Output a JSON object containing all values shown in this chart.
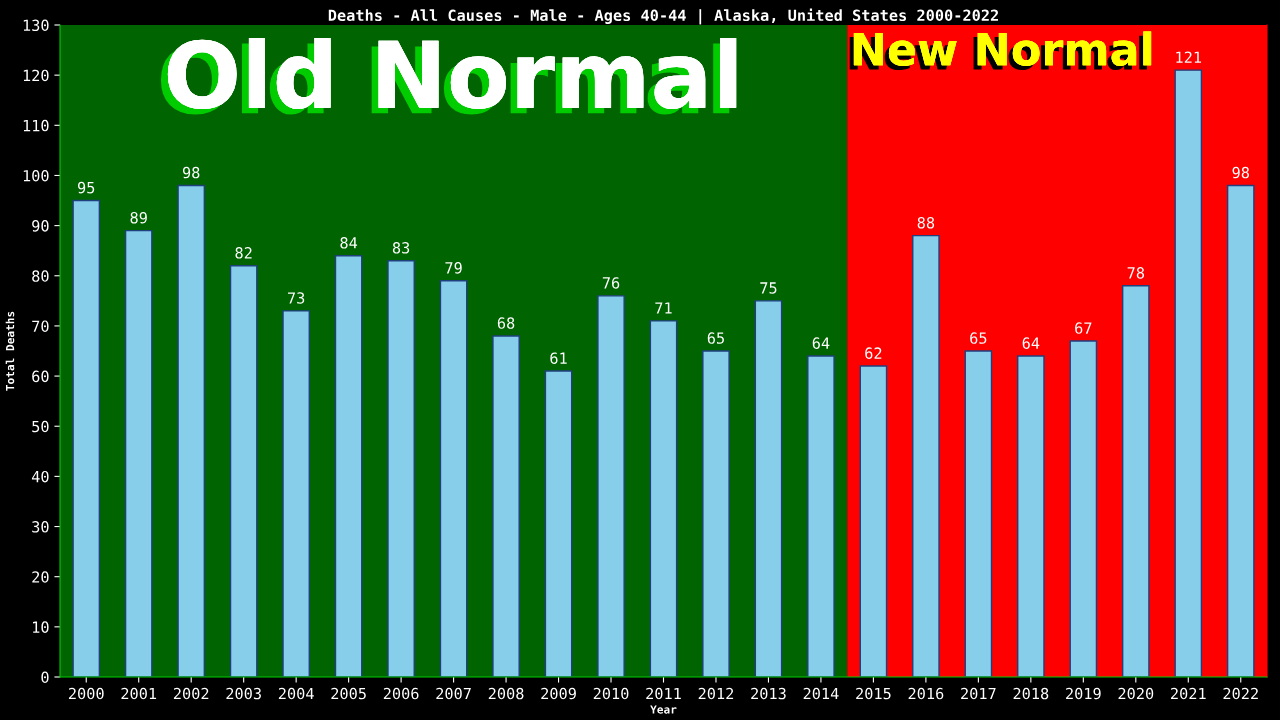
{
  "chart_data": {
    "type": "bar",
    "title": "Deaths - All Causes - Male - Ages 40-44 | Alaska, United States 2000-2022",
    "xlabel": "Year",
    "ylabel": "Total Deaths",
    "categories": [
      "2000",
      "2001",
      "2002",
      "2003",
      "2004",
      "2005",
      "2006",
      "2007",
      "2008",
      "2009",
      "2010",
      "2011",
      "2012",
      "2013",
      "2014",
      "2015",
      "2016",
      "2017",
      "2018",
      "2019",
      "2020",
      "2021",
      "2022"
    ],
    "values": [
      95,
      89,
      98,
      82,
      73,
      84,
      83,
      79,
      68,
      61,
      76,
      71,
      65,
      75,
      64,
      62,
      88,
      65,
      64,
      67,
      78,
      121,
      98
    ],
    "color": "#87ceeb",
    "data_labels": true,
    "ylim": [
      0,
      130
    ],
    "yticks": [
      0,
      10,
      20,
      30,
      40,
      50,
      60,
      70,
      80,
      90,
      100,
      110,
      120,
      130
    ],
    "bands": [
      {
        "axis": "x",
        "from": "2000",
        "to": "2014",
        "label": "Old Normal",
        "color": "#006400"
      },
      {
        "axis": "x",
        "from": "2015",
        "to": "2022",
        "label": "New Normal",
        "color": "#ff0000"
      }
    ],
    "grid": false,
    "legend": false
  }
}
